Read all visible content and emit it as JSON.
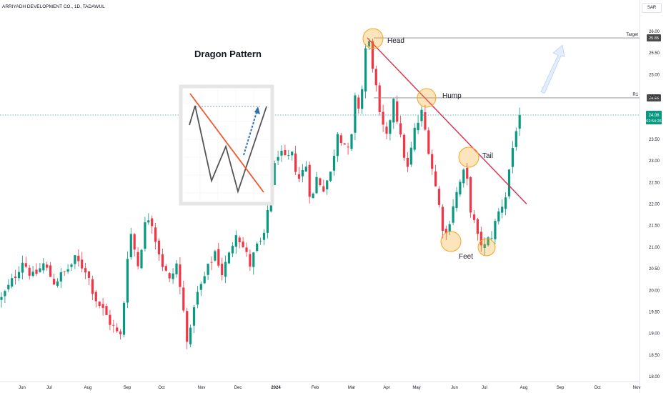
{
  "header": {
    "title": "ARRIYADH DEVELOPMENT CO., 1D, TADAWUL",
    "currency": "SAR"
  },
  "colors": {
    "up": "#089981",
    "down": "#f23645",
    "trend": "#e0284a",
    "marker": "#f5a623",
    "price_line": "#26a69a",
    "level": "#8a8a8a"
  },
  "chart_data": {
    "type": "candlestick",
    "title": "Dragon Pattern",
    "x_ticks": [
      "Jun",
      "Jul",
      "Aug",
      "Sep",
      "Oct",
      "Nov",
      "Dec",
      "2024",
      "Feb",
      "Mar",
      "Apr",
      "May",
      "Jun",
      "Jul",
      "Aug",
      "Sep",
      "Oct",
      "Nov"
    ],
    "y_ticks": [
      "26.00",
      "25.50",
      "25.00",
      "24.50",
      "24.00",
      "23.50",
      "23.00",
      "22.50",
      "22.00",
      "21.50",
      "21.00",
      "20.50",
      "20.00",
      "19.50",
      "19.00",
      "18.50",
      "18.00"
    ],
    "ylim": [
      18.0,
      26.0
    ],
    "close_path": [
      [
        0,
        19.8
      ],
      [
        3,
        20.2
      ],
      [
        6,
        20.7
      ],
      [
        9,
        20.3
      ],
      [
        12,
        20.6
      ],
      [
        15,
        20.2
      ],
      [
        18,
        20.4
      ],
      [
        21,
        20.7
      ],
      [
        24,
        20.5
      ],
      [
        27,
        19.8
      ],
      [
        30,
        19.4
      ],
      [
        33,
        19.0
      ],
      [
        34.5,
        18.9
      ],
      [
        35.5,
        20.6
      ],
      [
        37,
        21.3
      ],
      [
        39,
        20.6
      ],
      [
        41,
        21.5
      ],
      [
        42.5,
        21.8
      ],
      [
        44,
        21.2
      ],
      [
        46,
        20.6
      ],
      [
        48,
        20.2
      ],
      [
        50,
        20.6
      ],
      [
        52,
        19.5
      ],
      [
        53.5,
        18.65
      ],
      [
        55,
        19.7
      ],
      [
        57,
        20.1
      ],
      [
        59,
        20.5
      ],
      [
        61,
        20.9
      ],
      [
        63,
        20.4
      ],
      [
        65,
        20.8
      ],
      [
        67,
        21.4
      ],
      [
        69,
        21.0
      ],
      [
        71,
        20.6
      ],
      [
        73,
        21.0
      ],
      [
        75,
        21.2
      ],
      [
        77,
        22.5
      ],
      [
        79,
        23.2
      ],
      [
        81,
        23.0
      ],
      [
        83,
        23.1
      ],
      [
        85,
        22.6
      ],
      [
        87,
        22.9
      ],
      [
        88.5,
        22.0
      ],
      [
        90,
        22.6
      ],
      [
        92,
        22.4
      ],
      [
        94,
        22.7
      ],
      [
        96,
        23.7
      ],
      [
        98,
        23.4
      ],
      [
        99.5,
        23.1
      ],
      [
        101,
        24.4
      ],
      [
        102.5,
        24.2
      ],
      [
        104,
        25.6
      ],
      [
        105,
        25.7
      ],
      [
        106.5,
        25.0
      ],
      [
        108,
        24.0
      ],
      [
        110,
        23.5
      ],
      [
        112,
        24.5
      ],
      [
        114,
        23.5
      ],
      [
        116,
        22.8
      ],
      [
        118,
        23.7
      ],
      [
        120,
        24.1
      ],
      [
        122,
        23.3
      ],
      [
        124,
        22.4
      ],
      [
        126,
        21.5
      ],
      [
        127,
        21.3
      ],
      [
        129,
        22.0
      ],
      [
        131,
        22.5
      ],
      [
        132.5,
        22.8
      ],
      [
        134,
        21.9
      ],
      [
        136,
        21.2
      ],
      [
        138,
        21.0
      ],
      [
        140,
        21.3
      ],
      [
        142,
        21.8
      ],
      [
        144,
        22.2
      ],
      [
        145.5,
        23.1
      ],
      [
        146.5,
        23.5
      ],
      [
        147.5,
        24.06
      ]
    ],
    "last_price": "24.06",
    "countdown": "02:54:26",
    "levels": [
      {
        "label": "Target",
        "value": 25.85,
        "tag": "25.85"
      },
      {
        "label": "R1",
        "value": 24.46,
        "tag": "24.46"
      }
    ],
    "annotations": [
      "Head",
      "Hump",
      "Tail",
      "Feet"
    ],
    "trendline": {
      "from": [
        104.5,
        25.85
      ],
      "to": [
        150,
        22.0
      ]
    },
    "projection_arrow": {
      "from": [
        154.5,
        24.6
      ],
      "to": [
        160,
        25.65
      ]
    }
  }
}
